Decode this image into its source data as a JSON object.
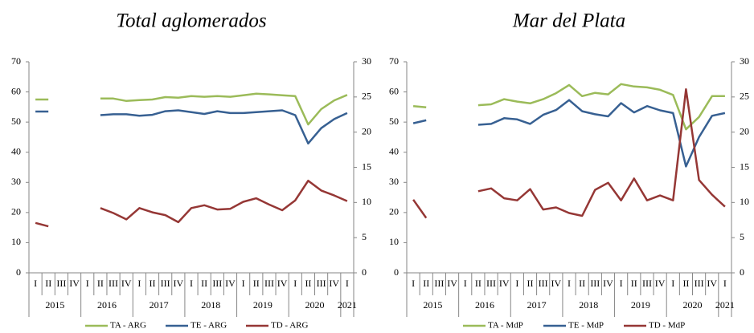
{
  "chart_data": [
    {
      "type": "line",
      "title": "Total aglomerados",
      "categories": [
        "I",
        "II",
        "III",
        "IV",
        "I",
        "II",
        "III",
        "IV",
        "I",
        "II",
        "III",
        "IV",
        "I",
        "II",
        "III",
        "IV",
        "I",
        "II",
        "III",
        "IV",
        "I",
        "II",
        "III",
        "IV",
        "I"
      ],
      "years": [
        "2015",
        null,
        null,
        null,
        "2016",
        null,
        null,
        null,
        "2017",
        null,
        null,
        null,
        "2018",
        null,
        null,
        null,
        "2019",
        null,
        null,
        null,
        "2020",
        null,
        null,
        null,
        "2021"
      ],
      "ylim": [
        0,
        70
      ],
      "yticks": [
        0,
        10,
        20,
        30,
        40,
        50,
        60,
        70
      ],
      "y2lim": [
        0,
        30
      ],
      "y2ticks": [
        0,
        5,
        10,
        15,
        20,
        25,
        30
      ],
      "series": [
        {
          "name": "TA - ARG",
          "color": "#9bbb59",
          "values": [
            57.5,
            57.5,
            null,
            null,
            null,
            57.8,
            57.8,
            57.0,
            57.3,
            57.5,
            58.3,
            58.1,
            58.6,
            58.4,
            58.6,
            58.4,
            58.9,
            59.4,
            59.2,
            58.9,
            58.6,
            49.2,
            54.3,
            57.2,
            59.0
          ]
        },
        {
          "name": "TE - ARG",
          "color": "#376092",
          "values": [
            53.5,
            53.5,
            null,
            null,
            null,
            52.3,
            52.6,
            52.6,
            52.1,
            52.4,
            53.6,
            53.9,
            53.3,
            52.7,
            53.6,
            53.0,
            53.0,
            53.3,
            53.6,
            53.9,
            52.3,
            42.9,
            48.0,
            51.0,
            53.0
          ]
        },
        {
          "name": "TD - ARG",
          "color": "#953735",
          "axis": "y2",
          "values": [
            7.1,
            6.6,
            null,
            null,
            null,
            9.2,
            8.5,
            7.6,
            9.2,
            8.6,
            8.2,
            7.2,
            9.2,
            9.6,
            9.0,
            9.1,
            10.1,
            10.6,
            9.7,
            8.9,
            10.3,
            13.1,
            11.7,
            11.0,
            10.2
          ]
        }
      ]
    },
    {
      "type": "line",
      "title": "Mar del Plata",
      "categories": [
        "I",
        "II",
        "III",
        "IV",
        "I",
        "II",
        "III",
        "IV",
        "I",
        "II",
        "III",
        "IV",
        "I",
        "II",
        "III",
        "IV",
        "I",
        "II",
        "III",
        "IV",
        "I",
        "II",
        "III",
        "IV",
        "I"
      ],
      "years": [
        "2015",
        null,
        null,
        null,
        "2016",
        null,
        null,
        null,
        "2017",
        null,
        null,
        null,
        "2018",
        null,
        null,
        null,
        "2019",
        null,
        null,
        null,
        "2020",
        null,
        null,
        null,
        "2021"
      ],
      "ylim": [
        0,
        70
      ],
      "yticks": [
        0,
        10,
        20,
        30,
        40,
        50,
        60,
        70
      ],
      "y2lim": [
        0,
        30
      ],
      "y2ticks": [
        0,
        5,
        10,
        15,
        20,
        25,
        30
      ],
      "series": [
        {
          "name": "TA - MdP",
          "color": "#9bbb59",
          "values": [
            55.3,
            54.9,
            null,
            null,
            null,
            55.6,
            55.9,
            57.6,
            56.8,
            56.2,
            57.6,
            59.6,
            62.3,
            58.6,
            59.7,
            59.2,
            62.6,
            61.8,
            61.5,
            60.7,
            59.0,
            47.6,
            51.7,
            58.6,
            58.6
          ]
        },
        {
          "name": "TE - MdP",
          "color": "#376092",
          "values": [
            49.6,
            50.6,
            null,
            null,
            null,
            49.1,
            49.4,
            51.3,
            50.9,
            49.4,
            52.4,
            54.0,
            57.3,
            53.6,
            52.6,
            51.9,
            56.3,
            53.2,
            55.3,
            53.9,
            53.0,
            35.3,
            45.0,
            52.1,
            53.0
          ]
        },
        {
          "name": "TD - MdP",
          "color": "#953735",
          "axis": "y2",
          "values": [
            10.4,
            7.8,
            null,
            null,
            null,
            11.6,
            12.0,
            10.6,
            10.3,
            11.9,
            9.0,
            9.3,
            8.5,
            8.1,
            11.8,
            12.8,
            10.3,
            13.4,
            10.3,
            11.0,
            10.3,
            26.1,
            13.2,
            11.1,
            9.4
          ]
        }
      ]
    }
  ]
}
